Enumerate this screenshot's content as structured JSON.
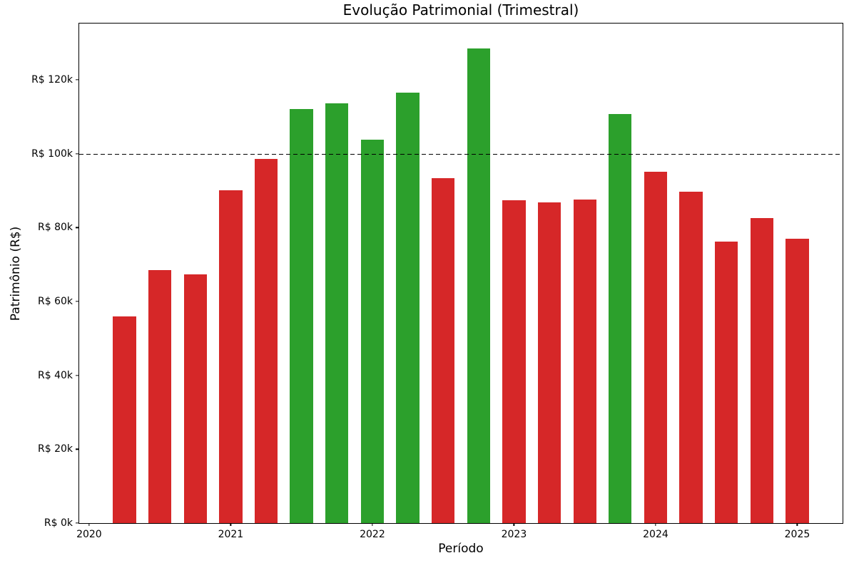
{
  "chart_data": {
    "type": "bar",
    "title": "Evolução Patrimonial (Trimestral)",
    "xlabel": "Período",
    "ylabel": "Patrimônio (R$)",
    "grid": false,
    "legend": false,
    "background_color": "#ffffff",
    "xlim_years": [
      2019.93,
      2025.32
    ],
    "ylim_thousands": [
      0,
      135.2
    ],
    "bar_width_years": 0.163,
    "threshold_line": {
      "value_thousands": 100,
      "style": "dashed",
      "color": "#000000"
    },
    "bar_colors": {
      "above_threshold": "#2ca02c",
      "below_threshold": "#d62728"
    },
    "categories": [
      "2020Q2",
      "2020Q3",
      "2020Q4",
      "2021Q1",
      "2021Q2",
      "2021Q3",
      "2021Q4",
      "2022Q1",
      "2022Q2",
      "2022Q3",
      "2022Q4",
      "2023Q1",
      "2023Q2",
      "2023Q3",
      "2023Q4",
      "2024Q1",
      "2024Q2",
      "2024Q3",
      "2024Q4",
      "2025Q1"
    ],
    "x_positions_years": [
      2020.25,
      2020.5,
      2020.75,
      2021.0,
      2021.25,
      2021.5,
      2021.75,
      2022.0,
      2022.25,
      2022.5,
      2022.75,
      2023.0,
      2023.25,
      2023.5,
      2023.75,
      2024.0,
      2024.25,
      2024.5,
      2024.75,
      2025.0
    ],
    "values_thousands": [
      56.0,
      68.5,
      67.4,
      90.1,
      98.5,
      112.0,
      113.6,
      103.7,
      116.5,
      93.4,
      128.4,
      87.3,
      86.8,
      87.5,
      110.7,
      95.0,
      89.6,
      76.1,
      82.5,
      76.9
    ],
    "y_axis": {
      "tick_values_thousands": [
        0,
        20,
        40,
        60,
        80,
        100,
        120
      ],
      "tick_labels": [
        "R$ 0k",
        "R$ 20k",
        "R$ 40k",
        "R$ 60k",
        "R$ 80k",
        "R$ 100k",
        "R$ 120k"
      ]
    },
    "x_axis": {
      "tick_values_years": [
        2020,
        2021,
        2022,
        2023,
        2024,
        2025
      ],
      "tick_labels": [
        "2020",
        "2021",
        "2022",
        "2023",
        "2024",
        "2025"
      ]
    }
  }
}
